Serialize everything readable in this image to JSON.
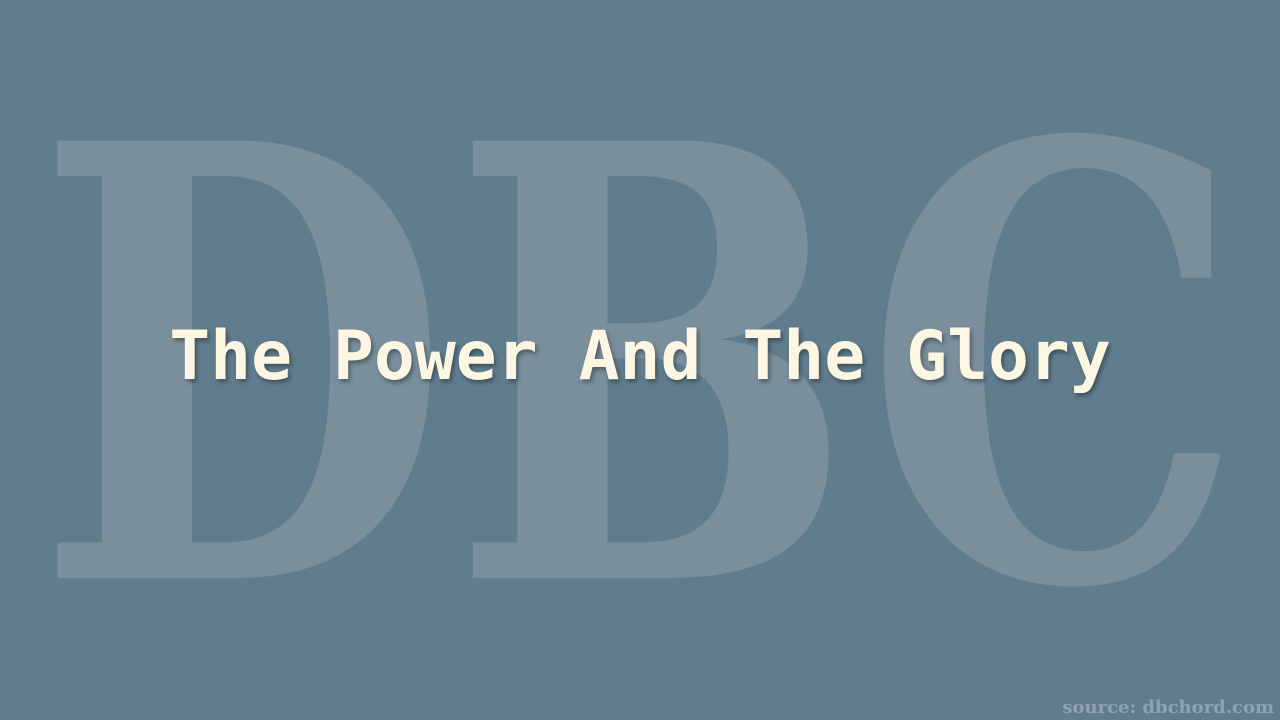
{
  "background_color": "#607d8e",
  "watermark": {
    "text": "DBC",
    "color": "#7a8f9c"
  },
  "title": {
    "text": "The Power And The Glory",
    "color": "#fdf6e3"
  },
  "source": {
    "text": "source: dbchord.com",
    "color": "#8ea3b0"
  }
}
